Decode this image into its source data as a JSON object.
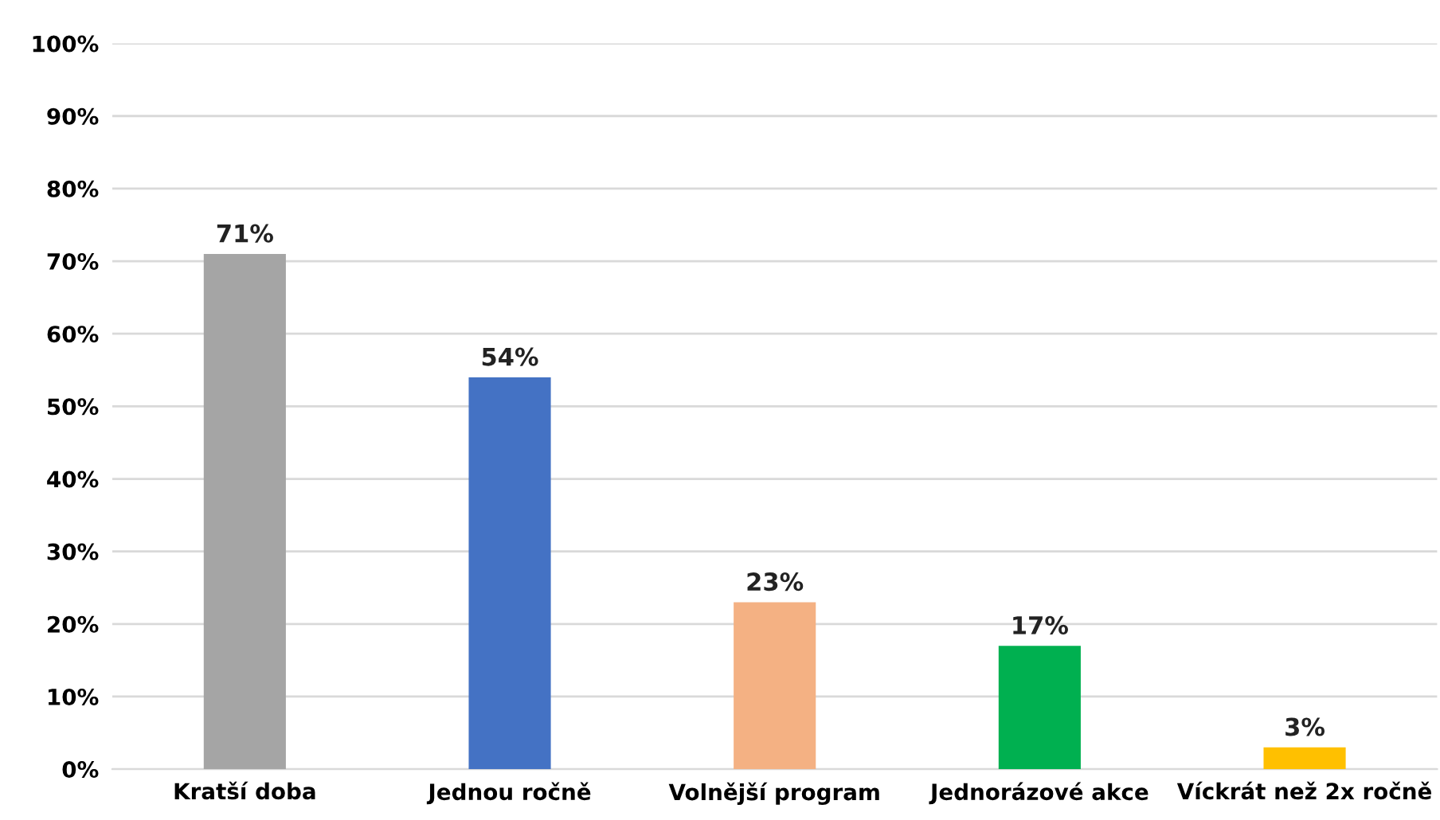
{
  "chart_data": {
    "type": "bar",
    "categories": [
      "Kratší doba",
      "Jednou ročně",
      "Volnější program",
      "Jednorázové akce",
      "Víckrát než 2x ročně"
    ],
    "values": [
      71,
      54,
      23,
      17,
      3
    ],
    "colors": [
      "#a5a5a5",
      "#4472c4",
      "#f4b183",
      "#00b050",
      "#ffc000"
    ],
    "value_labels": [
      "71%",
      "54%",
      "23%",
      "17%",
      "3%"
    ],
    "ylim": [
      0,
      100
    ],
    "yticks": [
      {
        "value": 0,
        "label": "0%"
      },
      {
        "value": 10,
        "label": "10%"
      },
      {
        "value": 20,
        "label": "20%"
      },
      {
        "value": 30,
        "label": "30%"
      },
      {
        "value": 40,
        "label": "40%"
      },
      {
        "value": 50,
        "label": "50%"
      },
      {
        "value": 60,
        "label": "60%"
      },
      {
        "value": 70,
        "label": "70%"
      },
      {
        "value": 80,
        "label": "80%"
      },
      {
        "value": 90,
        "label": "90%"
      },
      {
        "value": 100,
        "label": "100%"
      }
    ],
    "grid": "y"
  }
}
